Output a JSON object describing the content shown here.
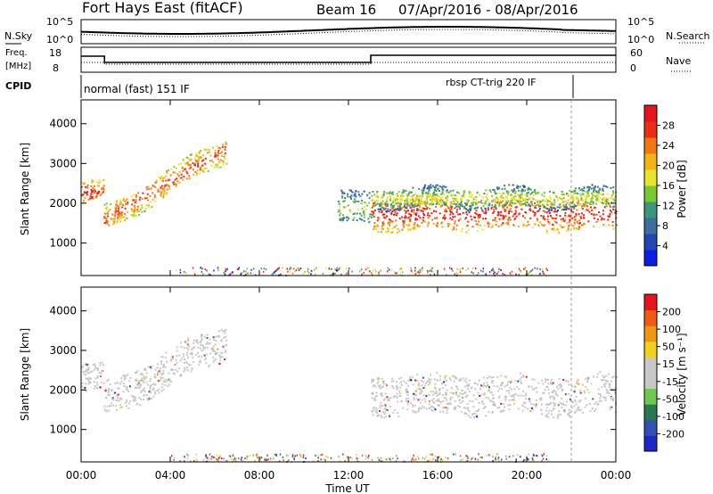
{
  "header": {
    "title": "Fort Hays East (fitACF)",
    "beam": "Beam 16",
    "date_range": "07/Apr/2016 - 08/Apr/2016"
  },
  "status": {
    "nsky_label": "N.Sky",
    "nsky_ticks": [
      "10^5",
      "10^0"
    ],
    "nsearch_label": "N.Search",
    "nsearch_ticks": [
      "10^5",
      "10^0"
    ],
    "freq_label": "Freq.",
    "freq_unit": "[MHz]",
    "freq_ticks": [
      "18",
      "8"
    ],
    "nave_label": "Nave",
    "nave_ticks": [
      "60",
      "0"
    ],
    "cpid_label": "CPID",
    "cpid_segments": [
      "normal (fast) 151 IF",
      "rbsp CT-trig 220 IF"
    ]
  },
  "colorbars": {
    "power": {
      "label": "Power [dB]",
      "ticks": [
        "28",
        "24",
        "20",
        "16",
        "12",
        "8",
        "4"
      ]
    },
    "velocity": {
      "label": "Velocity [m s⁻¹]",
      "ticks": [
        "200",
        "100",
        "50",
        "15",
        "-15",
        "-50",
        "-100",
        "-200"
      ]
    }
  },
  "chart_data": [
    {
      "type": "heatmap",
      "name": "power",
      "ylabel": "Slant Range [km]",
      "xlabel": "Time UT",
      "x_ticks": [
        "00:00",
        "04:00",
        "08:00",
        "12:00",
        "16:00",
        "20:00",
        "00:00"
      ],
      "y_ticks": [
        "4000",
        "3000",
        "2000",
        "1000"
      ],
      "xlim_hours": [
        0,
        24
      ],
      "ylim_km": [
        180,
        4600
      ],
      "echo_bands": [
        {
          "hours": [
            0.0,
            1.0
          ],
          "center_km": 2300,
          "width_km": 250,
          "dB": 26
        },
        {
          "hours": [
            1.0,
            6.5
          ],
          "center_km_start": 1600,
          "center_km_end": 3400,
          "width_km": 300,
          "dB": 24
        },
        {
          "hours": [
            11.5,
            13.0
          ],
          "center_km": 1900,
          "width_km": 400,
          "dB": 14
        },
        {
          "hours": [
            13.0,
            24.0
          ],
          "center_km": 1750,
          "width_km": 400,
          "dB": 26
        },
        {
          "hours": [
            13.0,
            24.0
          ],
          "center_km": 2150,
          "width_km": 250,
          "dB": 16
        }
      ]
    },
    {
      "type": "heatmap",
      "name": "velocity",
      "ylabel": "Slant Range [km]",
      "xlabel": "Time UT",
      "x_ticks": [
        "00:00",
        "04:00",
        "08:00",
        "12:00",
        "16:00",
        "20:00",
        "00:00"
      ],
      "y_ticks": [
        "4000",
        "3000",
        "2000",
        "1000"
      ],
      "xlim_hours": [
        0,
        24
      ],
      "ylim_km": [
        180,
        4600
      ],
      "echo_bands": [
        {
          "hours": [
            0.0,
            1.0
          ],
          "center_km": 2300,
          "width_km": 350,
          "m_s": 0
        },
        {
          "hours": [
            1.0,
            6.5
          ],
          "center_km_start": 1700,
          "center_km_end": 3300,
          "width_km": 450,
          "m_s": 0
        },
        {
          "hours": [
            13.0,
            24.0
          ],
          "center_km": 1900,
          "width_km": 500,
          "m_s": 0
        }
      ]
    }
  ]
}
